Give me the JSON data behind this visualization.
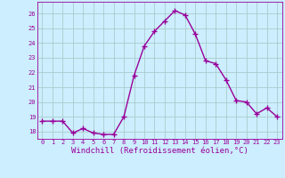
{
  "x": [
    0,
    1,
    2,
    3,
    4,
    5,
    6,
    7,
    8,
    9,
    10,
    11,
    12,
    13,
    14,
    15,
    16,
    17,
    18,
    19,
    20,
    21,
    22,
    23
  ],
  "y": [
    18.7,
    18.7,
    18.7,
    17.9,
    18.2,
    17.9,
    17.8,
    17.8,
    19.0,
    21.8,
    23.8,
    24.8,
    25.5,
    26.2,
    25.9,
    24.6,
    22.8,
    22.6,
    21.5,
    20.1,
    20.0,
    19.2,
    19.6,
    19.0
  ],
  "line_color": "#990099",
  "marker": "+",
  "marker_size": 4,
  "bg_color": "#cceeff",
  "grid_color": "#aacccc",
  "xlabel": "Windchill (Refroidissement éolien,°C)",
  "ylim_min": 17.5,
  "ylim_max": 26.8,
  "yticks": [
    18,
    19,
    20,
    21,
    22,
    23,
    24,
    25,
    26
  ],
  "xticks": [
    0,
    1,
    2,
    3,
    4,
    5,
    6,
    7,
    8,
    9,
    10,
    11,
    12,
    13,
    14,
    15,
    16,
    17,
    18,
    19,
    20,
    21,
    22,
    23
  ],
  "tick_color": "#990099",
  "spine_color": "#990099",
  "font_size_tick": 5,
  "font_size_xlabel": 6.5,
  "linewidth": 1.0,
  "markeredgewidth": 1.0
}
